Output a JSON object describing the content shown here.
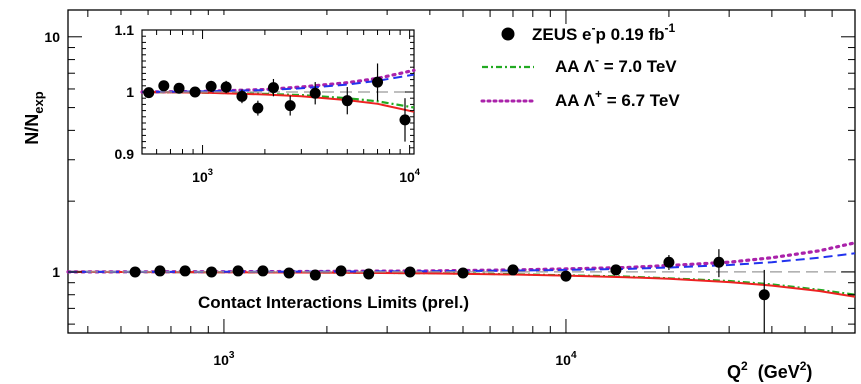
{
  "chart_data": [
    {
      "type": "scatter",
      "xscale": "log",
      "yscale": "log",
      "xlim": [
        350,
        70000
      ],
      "ylim": [
        0.55,
        13
      ],
      "xticks": [
        {
          "value": 1000,
          "base": "10",
          "exp": "3"
        },
        {
          "value": 10000,
          "base": "10",
          "exp": "4"
        }
      ],
      "yticks": [
        {
          "value": 1,
          "label": "1"
        },
        {
          "value": 10,
          "label": "10"
        }
      ],
      "xlabel": {
        "main": "Q",
        "sup": "2",
        "unit_pre": "(GeV",
        "unit_sup": "2",
        "unit_post": ")"
      },
      "ylabel": {
        "main": "N/N",
        "sub": "exp"
      },
      "annotation": "Contact Interactions Limits (prel.)",
      "points": [
        {
          "x": 550,
          "y": 1.0,
          "err": 0.02
        },
        {
          "x": 650,
          "y": 1.01,
          "err": 0.02
        },
        {
          "x": 770,
          "y": 1.01,
          "err": 0.02
        },
        {
          "x": 920,
          "y": 1.0,
          "err": 0.02
        },
        {
          "x": 1100,
          "y": 1.01,
          "err": 0.02
        },
        {
          "x": 1300,
          "y": 1.01,
          "err": 0.02
        },
        {
          "x": 1550,
          "y": 0.99,
          "err": 0.02
        },
        {
          "x": 1850,
          "y": 0.97,
          "err": 0.02
        },
        {
          "x": 2200,
          "y": 1.01,
          "err": 0.03
        },
        {
          "x": 2650,
          "y": 0.98,
          "err": 0.03
        },
        {
          "x": 3500,
          "y": 1.0,
          "err": 0.03
        },
        {
          "x": 5000,
          "y": 0.99,
          "err": 0.03
        },
        {
          "x": 7000,
          "y": 1.02,
          "err": 0.04
        },
        {
          "x": 10000,
          "y": 0.96,
          "err": 0.05
        },
        {
          "x": 14000,
          "y": 1.02,
          "err": 0.05
        },
        {
          "x": 20000,
          "y": 1.1,
          "err": 0.08
        },
        {
          "x": 28000,
          "y": 1.1,
          "err": 0.15
        },
        {
          "x": 38000,
          "y": 0.8,
          "err_up": 0.22,
          "err_down": 0.26
        }
      ],
      "series": [
        {
          "name": "AA   Λ⁻ = 7.0 TeV",
          "legend_main": "AA    Λ",
          "legend_sup": "-",
          "legend_post": " = 7.0 TeV",
          "style": "dashdot",
          "color": "#22aa22",
          "x": [
            350,
            1000,
            2000,
            4000,
            7000,
            10000,
            15000,
            20000,
            30000,
            40000,
            55000,
            70000
          ],
          "y": [
            1.0,
            0.998,
            0.995,
            0.988,
            0.978,
            0.968,
            0.955,
            0.94,
            0.915,
            0.885,
            0.84,
            0.8
          ]
        },
        {
          "name": "AA   Λ⁺ = 6.7 TeV",
          "legend_main": "AA    Λ",
          "legend_sup": "+",
          "legend_post": " = 6.7 TeV",
          "style": "dotted",
          "color": "#aa22aa",
          "x": [
            350,
            1000,
            2000,
            4000,
            7000,
            10000,
            15000,
            20000,
            30000,
            40000,
            55000,
            70000
          ],
          "y": [
            1.0,
            1.002,
            1.005,
            1.01,
            1.02,
            1.03,
            1.045,
            1.065,
            1.1,
            1.15,
            1.23,
            1.33
          ]
        },
        {
          "name": "",
          "style": "solid",
          "color": "#ee2222",
          "x": [
            350,
            1000,
            2000,
            4000,
            7000,
            10000,
            15000,
            20000,
            30000,
            40000,
            55000,
            70000
          ],
          "y": [
            1.0,
            0.998,
            0.994,
            0.986,
            0.975,
            0.965,
            0.95,
            0.935,
            0.905,
            0.875,
            0.83,
            0.785
          ]
        },
        {
          "name": "",
          "style": "dashed",
          "color": "#2233ee",
          "x": [
            350,
            1000,
            2000,
            4000,
            7000,
            10000,
            15000,
            20000,
            30000,
            40000,
            55000,
            70000
          ],
          "y": [
            1.0,
            1.001,
            1.003,
            1.007,
            1.013,
            1.02,
            1.03,
            1.045,
            1.07,
            1.1,
            1.15,
            1.2
          ]
        },
        {
          "name": "",
          "style": "longdash",
          "color": "#999999",
          "x": [
            350,
            70000
          ],
          "y": [
            1.0,
            1.0
          ]
        }
      ],
      "legend_data_label": {
        "main": "ZEUS  e",
        "sup": "-",
        "post": "p  0.19 fb",
        "sup2": "-1"
      }
    },
    {
      "type": "scatter",
      "xscale": "log",
      "xlim": [
        510,
        10500
      ],
      "ylim": [
        0.9,
        1.1
      ],
      "xticks": [
        {
          "value": 1000,
          "base": "10",
          "exp": "3"
        },
        {
          "value": 10000,
          "base": "10",
          "exp": "4"
        }
      ],
      "yticks": [
        {
          "value": 0.9,
          "label": "0.9"
        },
        {
          "value": 1.0,
          "label": "1"
        },
        {
          "value": 1.1,
          "label": "1.1"
        }
      ],
      "points": [
        {
          "x": 550,
          "y": 0.999,
          "err": 0.006
        },
        {
          "x": 650,
          "y": 1.01,
          "err": 0.007
        },
        {
          "x": 770,
          "y": 1.006,
          "err": 0.008
        },
        {
          "x": 920,
          "y": 1.0,
          "err": 0.008
        },
        {
          "x": 1100,
          "y": 1.009,
          "err": 0.009
        },
        {
          "x": 1300,
          "y": 1.008,
          "err": 0.01
        },
        {
          "x": 1550,
          "y": 0.993,
          "err": 0.011
        },
        {
          "x": 1850,
          "y": 0.974,
          "err": 0.012
        },
        {
          "x": 2200,
          "y": 1.007,
          "err": 0.014
        },
        {
          "x": 2650,
          "y": 0.978,
          "err": 0.016
        },
        {
          "x": 3500,
          "y": 0.998,
          "err": 0.018
        },
        {
          "x": 5000,
          "y": 0.986,
          "err": 0.022
        },
        {
          "x": 7000,
          "y": 1.016,
          "err": 0.03
        },
        {
          "x": 9500,
          "y": 0.955,
          "err": 0.035
        }
      ],
      "series": [
        {
          "style": "dashdot",
          "color": "#22aa22",
          "x": [
            510,
            1000,
            2000,
            3000,
            5000,
            7000,
            10500
          ],
          "y": [
            1.0,
            0.999,
            0.997,
            0.995,
            0.99,
            0.985,
            0.975
          ]
        },
        {
          "style": "dotted",
          "color": "#aa22aa",
          "x": [
            510,
            1000,
            2000,
            3000,
            5000,
            7000,
            10500
          ],
          "y": [
            1.0,
            1.001,
            1.004,
            1.008,
            1.015,
            1.022,
            1.035
          ]
        },
        {
          "style": "solid",
          "color": "#ee2222",
          "x": [
            510,
            1000,
            2000,
            3000,
            5000,
            7000,
            10500
          ],
          "y": [
            1.0,
            0.999,
            0.996,
            0.993,
            0.987,
            0.981,
            0.968
          ]
        },
        {
          "style": "dashed",
          "color": "#2233ee",
          "x": [
            510,
            1000,
            2000,
            3000,
            5000,
            7000,
            10500
          ],
          "y": [
            1.0,
            1.001,
            1.003,
            1.006,
            1.012,
            1.018,
            1.028
          ]
        },
        {
          "style": "longdash",
          "color": "#999999",
          "x": [
            510,
            10500
          ],
          "y": [
            1.0,
            1.0
          ]
        }
      ]
    }
  ]
}
